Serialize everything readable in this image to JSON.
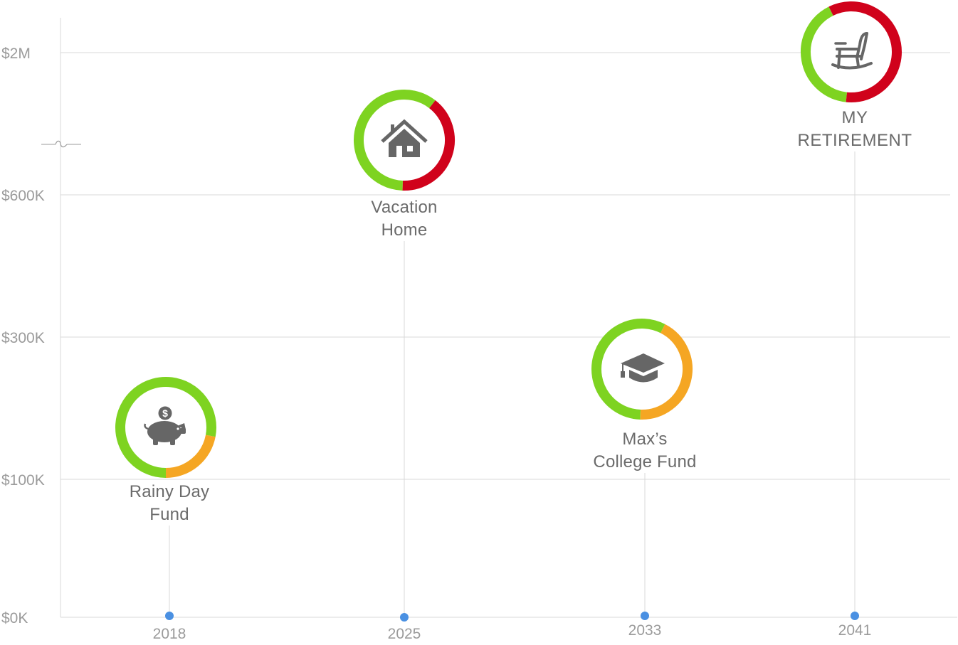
{
  "chart_data": {
    "type": "scatter",
    "title": "",
    "xlabel": "",
    "ylabel": "",
    "x_ticks": [
      "2018",
      "2025",
      "2033",
      "2041"
    ],
    "y_ticks": [
      "$0K",
      "$100K",
      "$300K",
      "$600K",
      "$2M"
    ],
    "y_axis_break": true,
    "grid": "horizontal",
    "goals": [
      {
        "name": "Rainy Day Fund",
        "label_lines": [
          "Rainy Day",
          "Fund"
        ],
        "year": 2018,
        "target": "$200K",
        "icon": "piggy-bank-icon",
        "progress": {
          "on_track": 0.78,
          "at_risk": 0.22,
          "off_track": 0
        }
      },
      {
        "name": "Vacation Home",
        "label_lines": [
          "Vacation",
          "Home"
        ],
        "year": 2025,
        "target": "$1.2M",
        "icon": "house-icon",
        "progress": {
          "on_track": 0.6,
          "at_risk": 0,
          "off_track": 0.4
        }
      },
      {
        "name": "Max’s College Fund",
        "label_lines": [
          "Max’s",
          "College Fund"
        ],
        "year": 2033,
        "target": "$250K",
        "icon": "graduation-cap-icon",
        "progress": {
          "on_track": 0.57,
          "at_risk": 0.43,
          "off_track": 0
        }
      },
      {
        "name": "MY RETIREMENT",
        "label_lines": [
          "MY",
          "RETIREMENT"
        ],
        "year": 2041,
        "target": "$2M",
        "icon": "rocking-chair-icon",
        "progress": {
          "on_track": 0.41,
          "at_risk": 0,
          "off_track": 0.59
        }
      }
    ],
    "colors": {
      "on_track": "#7ED321",
      "at_risk": "#F5A623",
      "off_track": "#D0021B",
      "marker": "#4A90E2",
      "grid": "#D8D8D8",
      "axis_text": "#9B9B9B",
      "label_text": "#6B6B6B",
      "icon": "#666666"
    }
  }
}
